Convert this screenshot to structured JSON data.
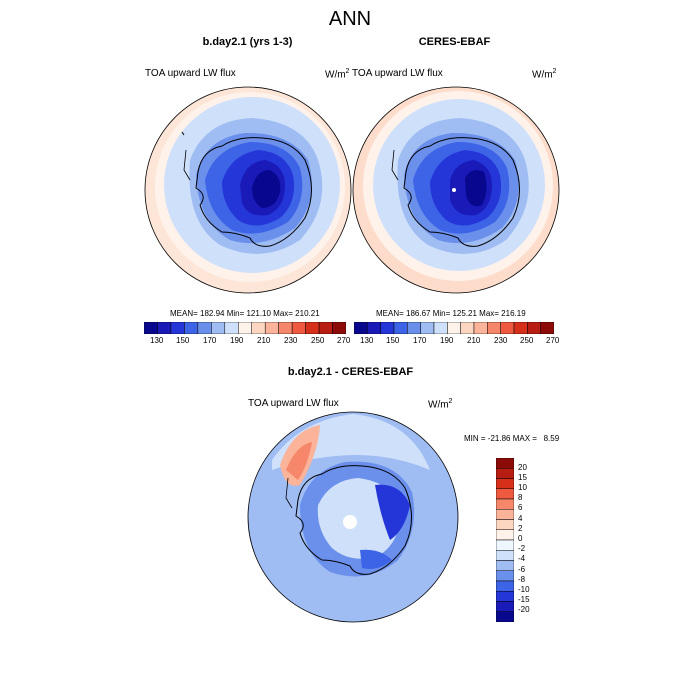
{
  "main_title": "ANN",
  "panels": [
    {
      "title": "b.day2.1 (yrs 1-3)",
      "variable": "TOA upward LW flux",
      "units_base": "W/m",
      "units_exp": "2",
      "stats": "MEAN= 182.94  Min= 121.10  Max= 210.21"
    },
    {
      "title": "CERES-EBAF",
      "variable": "TOA upward LW flux",
      "units_base": "W/m",
      "units_exp": "2",
      "stats": "MEAN= 186.67  Min= 125.21  Max= 216.19"
    },
    {
      "title": "b.day2.1 - CERES-EBAF",
      "variable": "TOA upward LW flux",
      "units_base": "W/m",
      "units_exp": "2",
      "stats": "MIN = -21.86 MAX =   8.59"
    }
  ],
  "abs_colorbar": {
    "ticks": [
      "130",
      "150",
      "170",
      "190",
      "210",
      "230",
      "250",
      "270"
    ],
    "colors": [
      "#08088f",
      "#1a1ab8",
      "#2436d8",
      "#3d63e6",
      "#6b90ec",
      "#9fbcf3",
      "#cfe0fa",
      "#fff2ea",
      "#fdd6c2",
      "#fbb39a",
      "#f6876b",
      "#ee5a3f",
      "#d7301a",
      "#b81d12",
      "#8c0a08"
    ]
  },
  "diff_colorbar": {
    "labels": [
      "20",
      "15",
      "10",
      "8",
      "6",
      "4",
      "2",
      "0",
      "-2",
      "-4",
      "-6",
      "-8",
      "-10",
      "-15",
      "-20"
    ],
    "colors": [
      "#8c0a08",
      "#b81d12",
      "#d7301a",
      "#ee5a3f",
      "#f6876b",
      "#fbb39a",
      "#fdd6c2",
      "#fff2ea",
      "#eef6ff",
      "#cfe0fa",
      "#9fbcf3",
      "#6b90ec",
      "#3d63e6",
      "#2436d8",
      "#1a1ab8",
      "#08088f"
    ]
  }
}
